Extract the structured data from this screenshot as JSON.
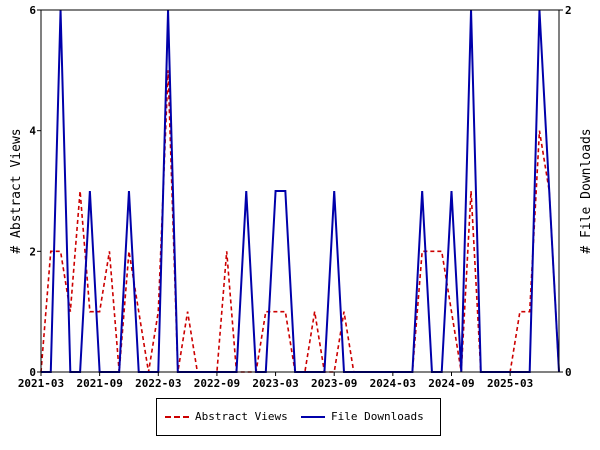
{
  "chart_data": {
    "type": "line",
    "x_tick_labels": [
      "2021-03",
      "2021-09",
      "2022-03",
      "2022-09",
      "2023-03",
      "2023-09",
      "2024-03",
      "2024-09",
      "2025-03"
    ],
    "x": [
      "2021-03",
      "2021-04",
      "2021-05",
      "2021-06",
      "2021-07",
      "2021-08",
      "2021-09",
      "2021-10",
      "2021-11",
      "2021-12",
      "2022-01",
      "2022-02",
      "2022-03",
      "2022-04",
      "2022-05",
      "2022-06",
      "2022-07",
      "2022-08",
      "2022-09",
      "2022-10",
      "2022-11",
      "2022-12",
      "2023-01",
      "2023-02",
      "2023-03",
      "2023-04",
      "2023-05",
      "2023-06",
      "2023-07",
      "2023-08",
      "2023-09",
      "2023-10",
      "2023-11",
      "2023-12",
      "2024-01",
      "2024-02",
      "2024-03",
      "2024-04",
      "2024-05",
      "2024-06",
      "2024-07",
      "2024-08",
      "2024-09",
      "2024-10",
      "2024-11",
      "2024-12",
      "2025-01",
      "2025-02",
      "2025-03",
      "2025-04",
      "2025-05",
      "2025-06",
      "2025-07",
      "2025-08"
    ],
    "series": [
      {
        "name": "Abstract Views",
        "axis": "left",
        "color": "#cc0000",
        "style": "dashed",
        "values": [
          0,
          2,
          2,
          1,
          3,
          1,
          1,
          2,
          0,
          2,
          1,
          0,
          1,
          5,
          0,
          1,
          0,
          0,
          0,
          2,
          0,
          0,
          0,
          1,
          1,
          1,
          0,
          0,
          1,
          0,
          0,
          1,
          0,
          0,
          0,
          0,
          0,
          0,
          0,
          2,
          2,
          2,
          1,
          0,
          3,
          0,
          0,
          0,
          0,
          1,
          1,
          4,
          3,
          0
        ]
      },
      {
        "name": "File Downloads",
        "axis": "right",
        "color": "#0000aa",
        "style": "solid",
        "values": [
          0,
          0,
          2,
          0,
          0,
          1,
          0,
          0,
          0,
          1,
          0,
          0,
          0,
          2,
          0,
          0,
          0,
          0,
          0,
          0,
          0,
          1,
          0,
          0,
          1,
          1,
          0,
          0,
          0,
          0,
          1,
          0,
          0,
          0,
          0,
          0,
          0,
          0,
          0,
          1,
          0,
          0,
          1,
          0,
          2,
          0,
          0,
          0,
          0,
          0,
          0,
          2,
          1,
          0
        ]
      }
    ],
    "ylabel_left": "# Abstract Views",
    "ylabel_right": "# File Downloads",
    "ylim_left": [
      0,
      6
    ],
    "ylim_right": [
      0,
      2
    ],
    "yticks_left": [
      0,
      2,
      4,
      6
    ],
    "yticks_right": [
      0,
      2
    ],
    "grid": false,
    "legend_position": "bottom"
  },
  "legend": {
    "items": [
      {
        "label": "Abstract Views"
      },
      {
        "label": "File Downloads"
      }
    ]
  }
}
